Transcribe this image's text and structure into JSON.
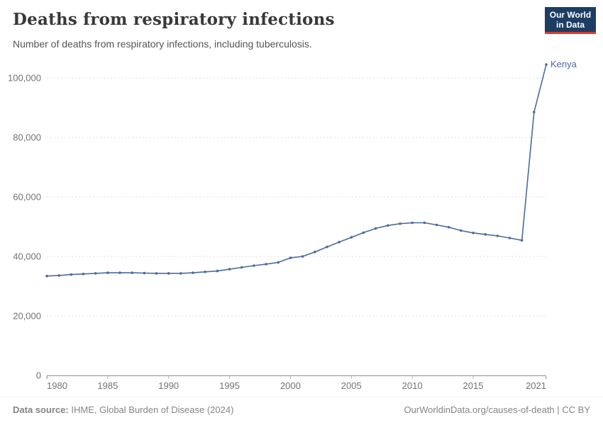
{
  "header": {
    "title": "Deaths from respiratory infections",
    "subtitle": "Number of deaths from respiratory infections, including tuberculosis."
  },
  "logo": {
    "line1": "Our World",
    "line2": "in Data",
    "bg_color": "#1d3d63",
    "bar_color": "#dc3a2f"
  },
  "footer": {
    "data_source_prefix": "Data source:",
    "data_source_text": " IHME, Global Burden of Disease (2024)",
    "license_text": "OurWorldinData.org/causes-of-death | CC BY"
  },
  "chart_data": {
    "type": "line",
    "title": "Deaths from respiratory infections",
    "subtitle": "Number of deaths from respiratory infections, including tuberculosis.",
    "xlabel": "",
    "ylabel": "",
    "xlim": [
      1980,
      2021
    ],
    "ylim": [
      0,
      100000
    ],
    "grid": "horizontal-dashed",
    "legend_position": "end-of-line-label",
    "colors": {
      "line": "#4c6a9c",
      "grid": "#dcdcdc",
      "axis": "#8f8f8f",
      "tick_text": "#737373"
    },
    "y_ticks": [
      {
        "value": 0,
        "label": "0"
      },
      {
        "value": 20000,
        "label": "20,000"
      },
      {
        "value": 40000,
        "label": "40,000"
      },
      {
        "value": 60000,
        "label": "60,000"
      },
      {
        "value": 80000,
        "label": "80,000"
      },
      {
        "value": 100000,
        "label": "100,000"
      }
    ],
    "x_ticks": [
      {
        "value": 1980,
        "label": "1980"
      },
      {
        "value": 1985,
        "label": "1985"
      },
      {
        "value": 1990,
        "label": "1990"
      },
      {
        "value": 1995,
        "label": "1995"
      },
      {
        "value": 2000,
        "label": "2000"
      },
      {
        "value": 2005,
        "label": "2005"
      },
      {
        "value": 2010,
        "label": "2010"
      },
      {
        "value": 2015,
        "label": "2015"
      },
      {
        "value": 2021,
        "label": "2021"
      }
    ],
    "series": [
      {
        "name": "Kenya",
        "color": "#4c6a9c",
        "x": [
          1980,
          1981,
          1982,
          1983,
          1984,
          1985,
          1986,
          1987,
          1988,
          1989,
          1990,
          1991,
          1992,
          1993,
          1994,
          1995,
          1996,
          1997,
          1998,
          1999,
          2000,
          2001,
          2002,
          2003,
          2004,
          2005,
          2006,
          2007,
          2008,
          2009,
          2010,
          2011,
          2012,
          2013,
          2014,
          2015,
          2016,
          2017,
          2018,
          2019,
          2020,
          2021
        ],
        "y": [
          33400,
          33600,
          33900,
          34100,
          34300,
          34500,
          34500,
          34500,
          34400,
          34300,
          34300,
          34300,
          34500,
          34800,
          35100,
          35700,
          36300,
          36900,
          37400,
          38000,
          39500,
          40000,
          41500,
          43200,
          44800,
          46400,
          48000,
          49400,
          50400,
          51000,
          51300,
          51300,
          50600,
          49800,
          48700,
          47900,
          47400,
          46900,
          46200,
          45400,
          88500,
          104500
        ]
      }
    ]
  }
}
